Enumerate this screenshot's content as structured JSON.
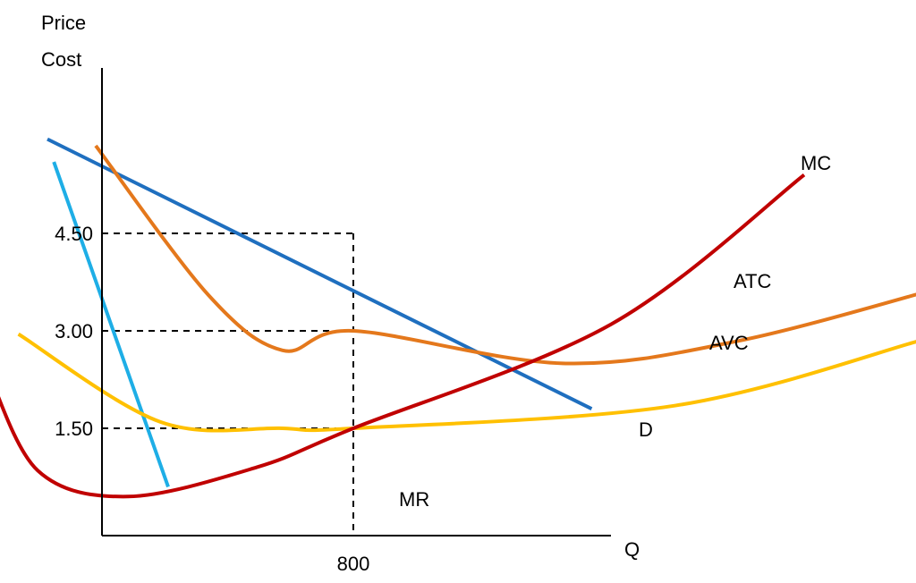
{
  "chart_data": {
    "type": "line",
    "ylabel_lines": [
      "Price",
      "Cost"
    ],
    "xlabel": "Q",
    "y_ticks": [
      {
        "label": "4.50",
        "value": 4.5
      },
      {
        "label": "3.00",
        "value": 3.0
      },
      {
        "label": "1.50",
        "value": 1.5
      }
    ],
    "x_ticks": [
      {
        "label": "800",
        "value": 800
      }
    ],
    "colors": {
      "axis": "#000000",
      "guide": "#000000",
      "D": "#1f6fbf",
      "MR": "#1eaee6",
      "ATC": "#e4781c",
      "AVC": "#ffc000",
      "MC": "#c00000"
    },
    "series": [
      {
        "name": "D",
        "points": [
          [
            -150,
            5.95
          ],
          [
            1540,
            1.8
          ]
        ]
      },
      {
        "name": "MR",
        "points": [
          [
            -130,
            5.6
          ],
          [
            225,
            0.6
          ]
        ]
      },
      {
        "name": "ATC",
        "points": [
          [
            0,
            5.85
          ],
          [
            350,
            3.55
          ],
          [
            580,
            2.7
          ],
          [
            800,
            3.0
          ],
          [
            1450,
            2.5
          ],
          [
            2000,
            2.85
          ],
          [
            2650,
            3.7
          ]
        ]
      },
      {
        "name": "AVC",
        "points": [
          [
            -240,
            2.95
          ],
          [
            200,
            1.6
          ],
          [
            580,
            1.5
          ],
          [
            800,
            1.5
          ],
          [
            1800,
            1.85
          ],
          [
            2560,
            2.85
          ]
        ]
      },
      {
        "name": "MC",
        "points": [
          [
            -340,
            2.45
          ],
          [
            -180,
            0.85
          ],
          [
            100,
            0.45
          ],
          [
            500,
            0.9
          ],
          [
            800,
            1.5
          ],
          [
            1600,
            3.1
          ],
          [
            2200,
            5.4
          ]
        ]
      }
    ],
    "curve_labels": [
      "MC",
      "ATC",
      "AVC",
      "D",
      "MR"
    ],
    "guides": [
      {
        "price": 4.5,
        "quantity": 800
      },
      {
        "price": 3.0,
        "quantity": 800
      },
      {
        "price": 1.5,
        "quantity": 800
      }
    ]
  }
}
